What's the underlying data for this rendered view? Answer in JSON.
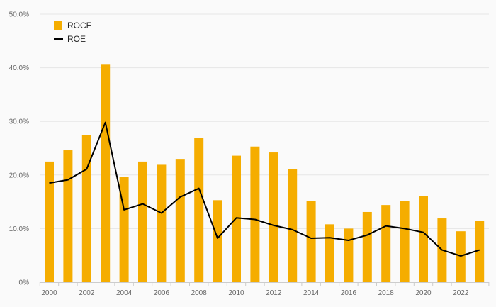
{
  "chart_data": {
    "type": "bar",
    "title": "",
    "xlabel": "",
    "ylabel": "",
    "ylim": [
      0,
      50
    ],
    "y_ticks": [
      0,
      10,
      20,
      30,
      40,
      50
    ],
    "y_tick_labels": [
      "0%",
      "10.0%",
      "20.0%",
      "30.0%",
      "40.0%",
      "50.0%"
    ],
    "categories": [
      "2000",
      "2001",
      "2002",
      "2003",
      "2004",
      "2005",
      "2006",
      "2007",
      "2008",
      "2009",
      "2010",
      "2011",
      "2012",
      "2013",
      "2014",
      "2015",
      "2016",
      "2017",
      "2018",
      "2019",
      "2020",
      "2021",
      "2022",
      "2023"
    ],
    "x_tick_labels": [
      "2000",
      "2002",
      "2004",
      "2006",
      "2008",
      "2010",
      "2012",
      "2014",
      "2016",
      "2018",
      "2020",
      "2022"
    ],
    "grid": true,
    "legend_position": "top-left",
    "series": [
      {
        "name": "ROCE",
        "type": "bar",
        "color": "#f5ad00",
        "values": [
          22.5,
          24.6,
          27.5,
          40.7,
          19.6,
          22.5,
          21.9,
          23.0,
          26.9,
          15.3,
          23.6,
          25.3,
          24.2,
          21.1,
          15.2,
          10.8,
          10.0,
          13.1,
          14.4,
          15.1,
          16.1,
          11.9,
          9.5,
          11.4
        ]
      },
      {
        "name": "ROE",
        "type": "line",
        "color": "#000000",
        "values": [
          18.5,
          19.1,
          21.1,
          29.8,
          13.5,
          14.6,
          12.9,
          15.9,
          17.5,
          8.2,
          12.0,
          11.7,
          10.6,
          9.8,
          8.2,
          8.3,
          7.8,
          8.8,
          10.5,
          10.0,
          9.3,
          6.0,
          4.9,
          6.0
        ]
      }
    ]
  }
}
